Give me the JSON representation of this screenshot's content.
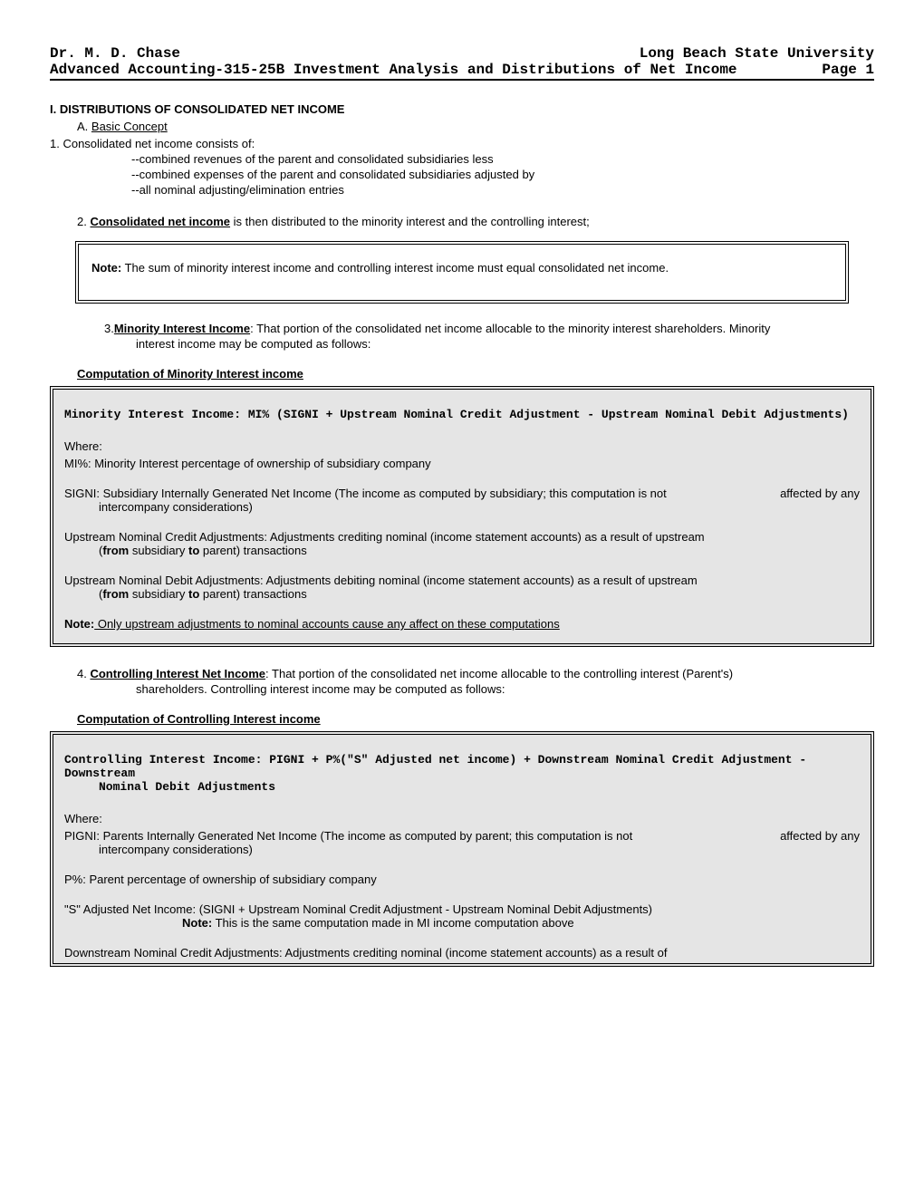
{
  "header": {
    "author": "Dr. M. D. Chase",
    "university": "Long Beach State University",
    "course": "Advanced Accounting-315-25B Investment Analysis and Distributions of Net Income",
    "page": "Page 1"
  },
  "section1": {
    "title": "I. DISTRIBUTIONS OF CONSOLIDATED NET INCOME",
    "subA": "A. ",
    "subA_u": "Basic Concept",
    "item1_lead": "1. Consolidated net income consists of:",
    "dash1": "--combined revenues of the parent and consolidated subsidiaries less",
    "dash2": "--combined expenses of the parent and consolidated subsidiaries adjusted by",
    "dash3": "--all nominal adjusting/elimination entries",
    "item2_pre": "2. ",
    "item2_term": "Consolidated net income",
    "item2_post": " is then distributed to the minority interest and the controlling interest;",
    "note_label": "Note:",
    "note_text": " The sum of minority interest income and controlling interest income must equal consolidated net income.",
    "item3_pre": "3.",
    "item3_term": "Minority Interest Income",
    "item3_post": ": That portion of the consolidated net income allocable to the minority interest shareholders.  Minority",
    "item3_cont": "interest income may be computed as follows:",
    "calc_hdr1": "Computation of Minority Interest income",
    "mi_formula": "Minority Interest Income: MI% (SIGNI + Upstream Nominal Credit Adjustment - Upstream Nominal Debit Adjustments)",
    "where": "Where:",
    "mi_def": "MI%: Minority Interest percentage of ownership of subsidiary company",
    "signi_main": "SIGNI: Subsidiary Internally Generated Net Income (The income as computed by subsidiary; this computation is not",
    "signi_right": "affected by any",
    "signi_cont": "intercompany considerations)",
    "upcred_main": "Upstream Nominal Credit Adjustments: Adjustments crediting nominal (income statement accounts) as a result of upstream",
    "updeb_main": "Upstream Nominal Debit Adjustments: Adjustments debiting nominal (income statement accounts) as a result of upstream",
    "fromsub_pre": "(",
    "fromsub_b1": "from",
    "fromsub_mid": " subsidiary ",
    "fromsub_b2": "to",
    "fromsub_post": " parent) transactions",
    "mi_note_label": "Note:",
    "mi_note_text": " Only upstream adjustments to nominal accounts cause any affect on these computations",
    "item4_pre": "4. ",
    "item4_term": "Controlling Interest Net Income",
    "item4_post": ": That portion of the consolidated net income allocable to the controlling interest (Parent's)",
    "item4_cont": "shareholders.  Controlling interest income may be computed as follows:",
    "calc_hdr2": "Computation of Controlling Interest income",
    "ci_formula1": "Controlling Interest Income: PIGNI + P%(\"S\" Adjusted net income) + Downstream Nominal Credit Adjustment - Downstream",
    "ci_formula2": "Nominal Debit Adjustments",
    "pigni_main": "PIGNI: Parents Internally Generated Net Income (The income as computed by parent; this computation is not",
    "pigni_right": "affected by any",
    "pigni_cont": "intercompany considerations)",
    "ppct_def": "P%: Parent percentage of ownership of subsidiary company",
    "sadj_main": "\"S\" Adjusted Net Income: (SIGNI + Upstream Nominal Credit Adjustment - Upstream Nominal Debit Adjustments)",
    "sadj_note_label": "Note:",
    "sadj_note_text": " This is the same computation made in MI income computation above",
    "dncred_main": "Downstream Nominal Credit Adjustments: Adjustments crediting nominal (income statement accounts) as a result of"
  },
  "style": {
    "bg": "#ffffff",
    "box_bg": "#e5e5e5",
    "text": "#000000",
    "mono_font": "Courier New",
    "body_font": "Comic Sans MS",
    "body_size_pt": 10,
    "hdr_size_pt": 12
  }
}
